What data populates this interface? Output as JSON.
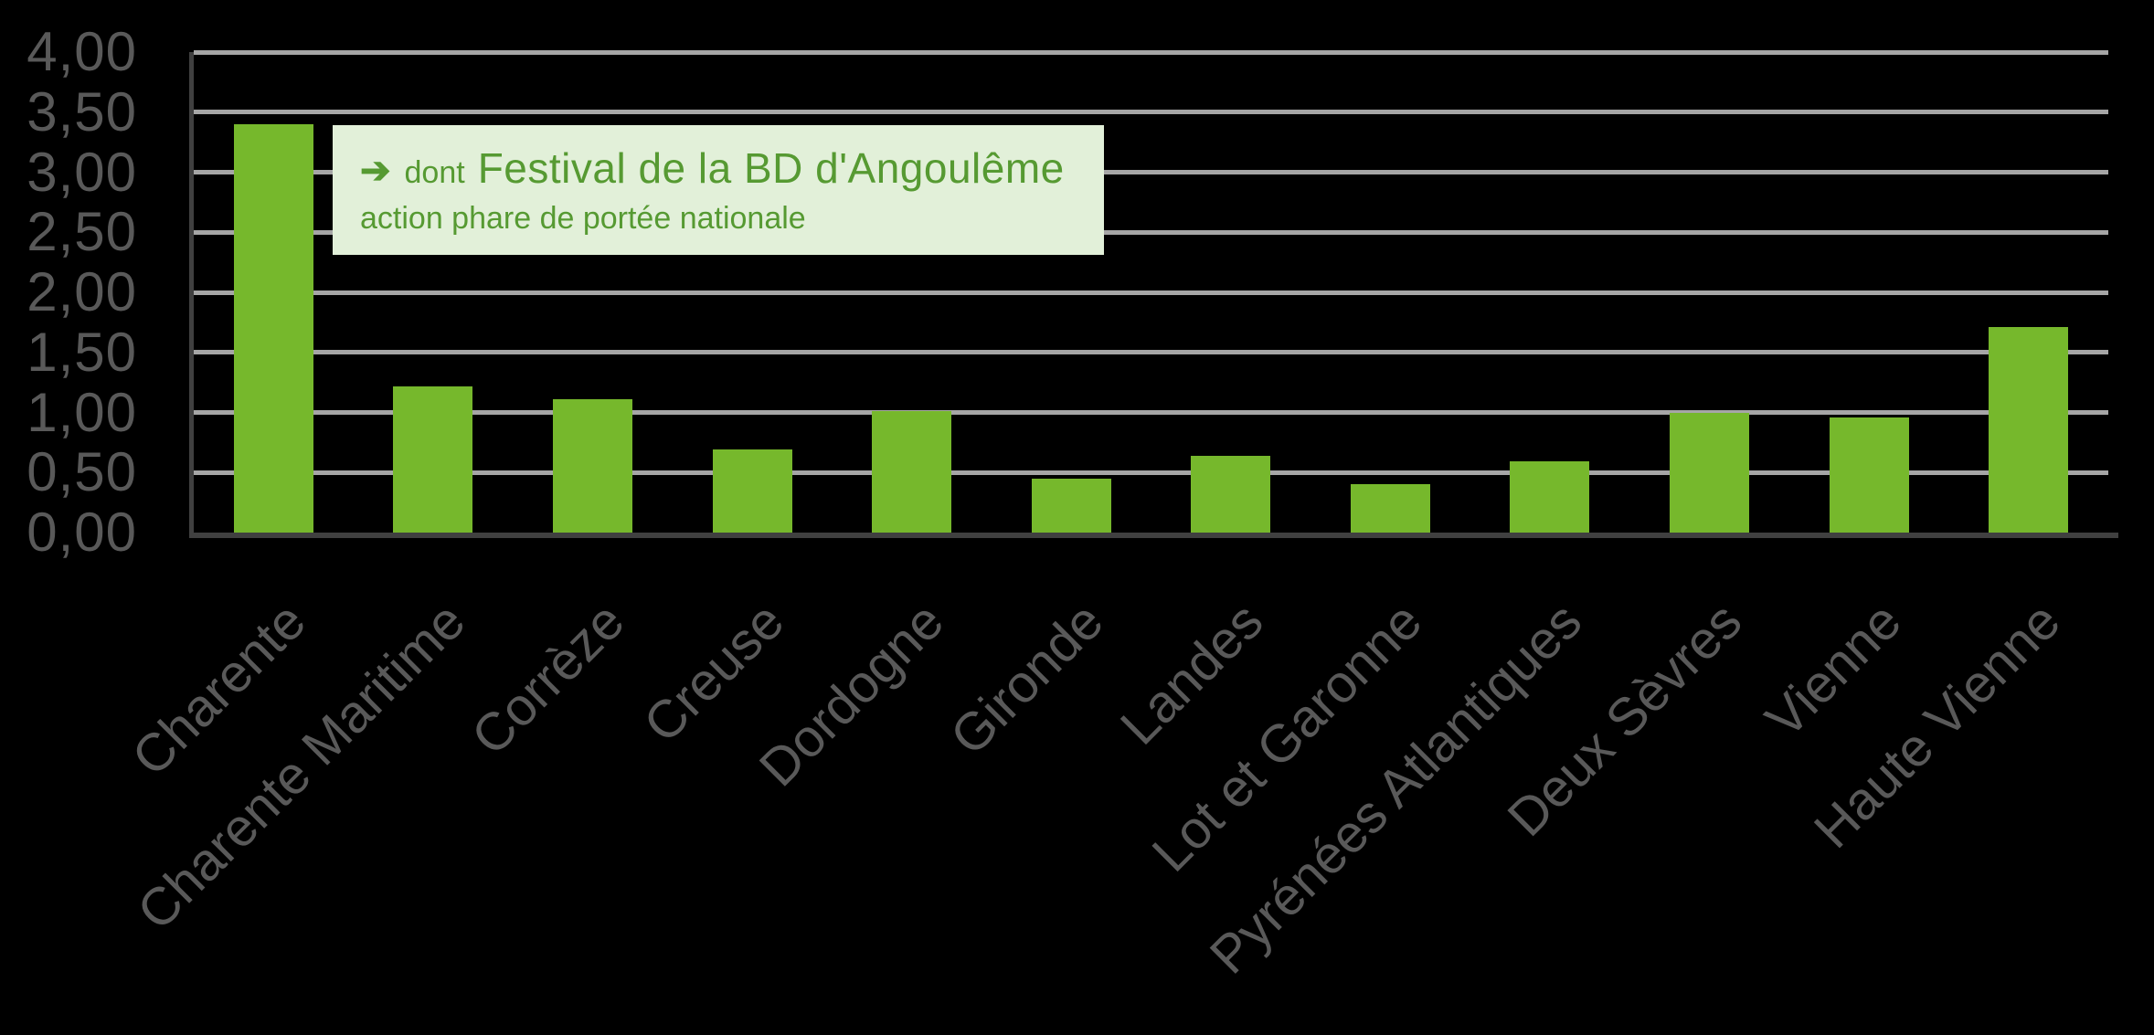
{
  "chart_data": {
    "type": "bar",
    "title": "",
    "xlabel": "",
    "ylabel": "",
    "categories": [
      "Charente",
      "Charente Maritime",
      "Corrèze",
      "Creuse",
      "Dordogne",
      "Gironde",
      "Landes",
      "Lot et Garonne",
      "Pyrénées Atlantiques",
      "Deux Sèvres",
      "Vienne",
      "Haute Vienne"
    ],
    "values": [
      3.4,
      1.22,
      1.11,
      0.69,
      1.01,
      0.45,
      0.64,
      0.4,
      0.59,
      1.0,
      0.96,
      1.71
    ],
    "ylim": [
      0,
      4
    ],
    "ytick_step": 0.5,
    "ytick_labels": [
      "0,00",
      "0,50",
      "1,00",
      "1,50",
      "2,00",
      "2,50",
      "3,00",
      "3,50",
      "4,00"
    ],
    "grid": true,
    "legend": "none",
    "annotation": {
      "arrow": "➔",
      "prefix": "dont",
      "highlight": "Festival de la BD d'Angoulême",
      "note": "action phare de portée nationale"
    },
    "colors": {
      "bar": "#76B82C",
      "grid": "#A6A6A6",
      "axis": "#404040",
      "tick_label": "#595959",
      "annotation_bg": "#E2F0D9",
      "annotation_text": "#569A32",
      "background": "#000000"
    }
  }
}
